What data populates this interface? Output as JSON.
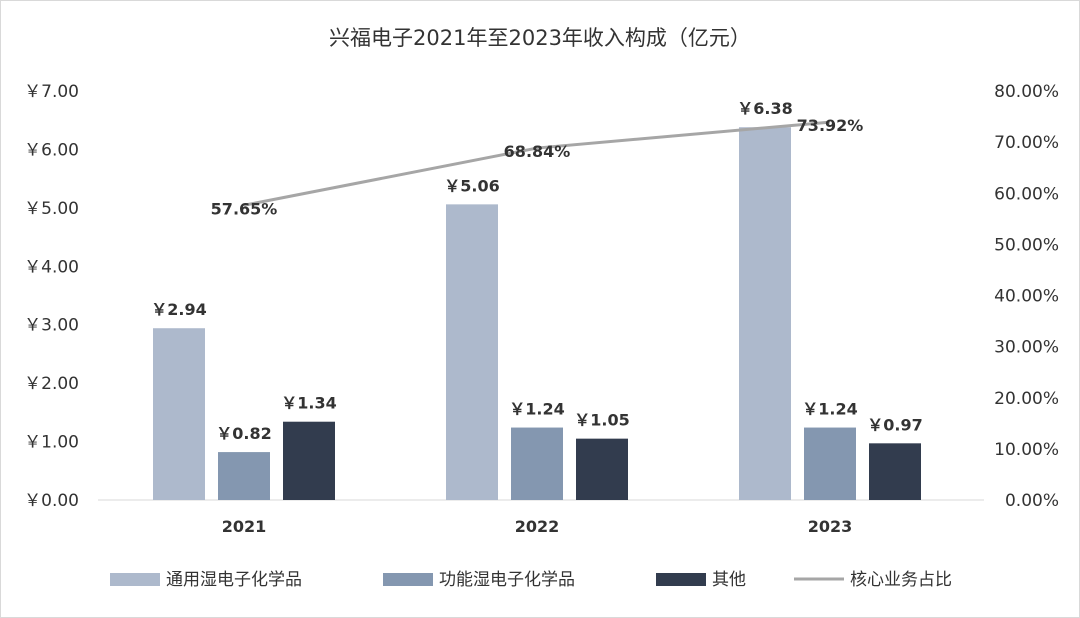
{
  "chart_data": {
    "type": "bar",
    "title": "兴福电子2021年至2023年收入构成（亿元）",
    "categories": [
      "2021",
      "2022",
      "2023"
    ],
    "series": [
      {
        "name": "通用湿电子化学品",
        "values": [
          2.94,
          5.06,
          6.38
        ],
        "labels": [
          "￥2.94",
          "￥5.06",
          "￥6.38"
        ],
        "color": "#adb9cc"
      },
      {
        "name": "功能湿电子化学品",
        "values": [
          0.82,
          1.24,
          1.24
        ],
        "labels": [
          "￥0.82",
          "￥1.24",
          "￥1.24"
        ],
        "color": "#8497b0"
      },
      {
        "name": "其他",
        "values": [
          1.34,
          1.05,
          0.97
        ],
        "labels": [
          "￥1.34",
          "￥1.05",
          "￥0.97"
        ],
        "color": "#323c4e"
      }
    ],
    "line_series": {
      "name": "核心业务占比",
      "type": "line",
      "axis": "right",
      "values": [
        57.65,
        68.84,
        73.92
      ],
      "labels": [
        "57.65%",
        "68.84%",
        "73.92%"
      ],
      "color": "#a6a6a6"
    },
    "y_left": {
      "range": [
        0,
        7
      ],
      "ticks": [
        0,
        1,
        2,
        3,
        4,
        5,
        6,
        7
      ],
      "tick_labels": [
        "￥0.00",
        "￥1.00",
        "￥2.00",
        "￥3.00",
        "￥4.00",
        "￥5.00",
        "￥6.00",
        "￥7.00"
      ]
    },
    "y_right": {
      "range": [
        0,
        80
      ],
      "ticks": [
        0,
        10,
        20,
        30,
        40,
        50,
        60,
        70,
        80
      ],
      "tick_labels": [
        "0.00%",
        "10.00%",
        "20.00%",
        "30.00%",
        "40.00%",
        "50.00%",
        "60.00%",
        "70.00%",
        "80.00%"
      ]
    },
    "grid": false,
    "legend_position": "bottom"
  }
}
